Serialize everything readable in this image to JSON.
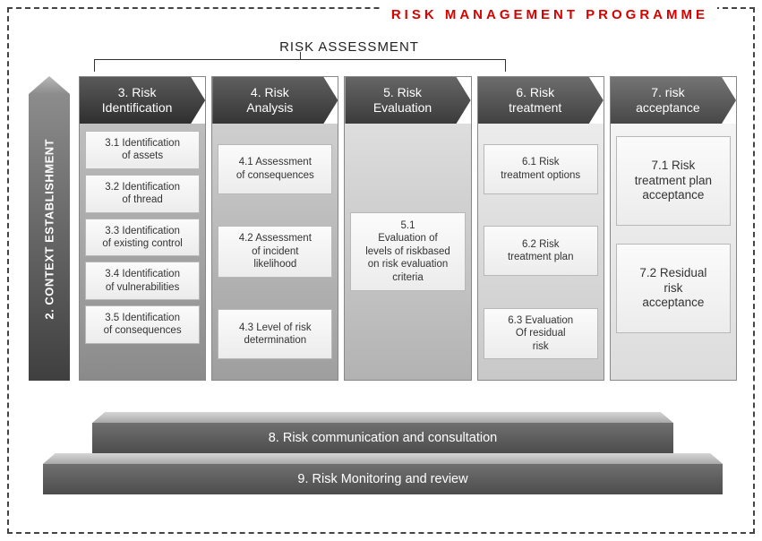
{
  "title": "RISK MANAGEMENT PROGRAMME",
  "risk_assessment_label": "RISK ASSESSMENT",
  "sidebar": {
    "label": "2. CONTEXT ESTABLISHMENT"
  },
  "colors": {
    "title": "#d90000",
    "frame_border": "#444444",
    "sub_bg_top": "#fbfbfb",
    "sub_bg_bottom": "#ececec",
    "sub_border": "#b8b8b8",
    "plinth_top_light": "#d6d6d6",
    "plinth_top_dark": "#a8a8a8",
    "plinth_face_top": "#707070",
    "plinth_face_bottom": "#4c4c4c"
  },
  "stages": [
    {
      "header": "3. Risk\nIdentification",
      "header_grad": [
        "#5a5a5a",
        "#2f2f2f"
      ],
      "body_grad": [
        "#bfbfbf",
        "#8a8a8a"
      ],
      "layout": "tight",
      "subs": [
        "3.1 Identification\nof assets",
        "3.2 Identification\nof thread",
        "3.3 Identification\nof existing control",
        "3.4 Identification\nof vulnerabilities",
        "3.5 Identification\nof consequences"
      ]
    },
    {
      "header": "4. Risk\nAnalysis",
      "header_grad": [
        "#5f5f5f",
        "#353535"
      ],
      "body_grad": [
        "#cfcfcf",
        "#9e9e9e"
      ],
      "layout": "spread",
      "subs": [
        "4.1 Assessment\nof consequences",
        "4.2 Assessment\nof incident\nlikelihood",
        "4.3 Level of risk\ndetermination"
      ]
    },
    {
      "header": "5. Risk\nEvaluation",
      "header_grad": [
        "#666666",
        "#3b3b3b"
      ],
      "body_grad": [
        "#dedede",
        "#b2b2b2"
      ],
      "layout": "center",
      "subs": [
        "5.1\nEvaluation of\nlevels of riskbased\non risk evaluation\ncriteria"
      ]
    },
    {
      "header": "6. Risk\ntreatment",
      "header_grad": [
        "#6d6d6d",
        "#414141"
      ],
      "body_grad": [
        "#ececec",
        "#c8c8c8"
      ],
      "layout": "spread",
      "subs": [
        "6.1 Risk\ntreatment options",
        "6.2 Risk\ntreatment plan",
        "6.3 Evaluation\nOf residual\nrisk"
      ]
    },
    {
      "header": "7. risk\nacceptance",
      "header_grad": [
        "#747474",
        "#474747"
      ],
      "body_grad": [
        "#f4f4f4",
        "#dcdcdc"
      ],
      "layout": "two",
      "subs": [
        "7.1 Risk\ntreatment plan\nacceptance",
        "7.2 Residual\nrisk\nacceptance"
      ]
    }
  ],
  "bottom": [
    "8. Risk communication  and consultation",
    "9. Risk Monitoring and review"
  ]
}
